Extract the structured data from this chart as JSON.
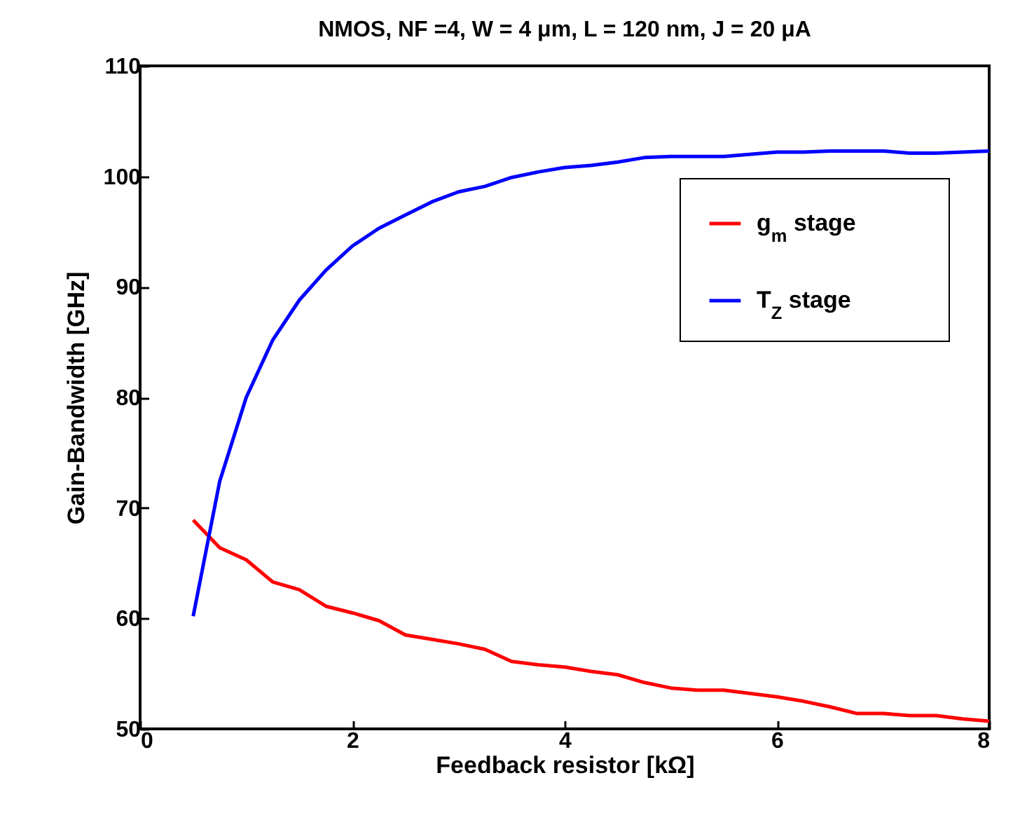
{
  "chart_data": {
    "type": "line",
    "title": "NMOS, NF =4, W = 4 μm, L = 120 nm, J = 20 μA",
    "xlabel": "Feedback resistor [kΩ]",
    "ylabel": "Gain-Bandwidth [GHz]",
    "xlim": [
      0,
      8
    ],
    "xticks": [
      0,
      2,
      4,
      6,
      8
    ],
    "ylim": [
      50,
      110
    ],
    "yticks": [
      50,
      60,
      70,
      80,
      90,
      100,
      110
    ],
    "grid": false,
    "legend": "top right",
    "line_style": "solid",
    "marker": "none",
    "series": [
      {
        "name": "g$_{m}$ stage",
        "color": "#ff0000",
        "x": [
          0.5,
          0.75,
          1,
          1.25,
          1.5,
          1.75,
          2,
          2.25,
          2.5,
          2.75,
          3,
          3.25,
          3.5,
          3.75,
          4,
          4.25,
          4.5,
          4.75,
          5,
          5.25,
          5.5,
          6,
          6.25,
          6.5,
          6.75,
          7,
          7.25,
          7.5,
          7.75,
          8
        ],
        "values": [
          68.9,
          66.4,
          65.3,
          63.3,
          62.6,
          61.1,
          60.5,
          59.8,
          58.5,
          58.1,
          57.7,
          57.2,
          56.1,
          55.8,
          55.6,
          55.2,
          54.9,
          54.2,
          53.7,
          53.5,
          53.5,
          52.9,
          52.5,
          52,
          51.4,
          51.4,
          51.2,
          51.2,
          50.9,
          50.7
        ]
      },
      {
        "name": "T$_{Z}$ stage",
        "color": "#0000ff",
        "x": [
          0.5,
          0.75,
          1,
          1.25,
          1.5,
          1.75,
          2,
          2.25,
          2.5,
          2.75,
          3,
          3.25,
          3.5,
          3.75,
          4,
          4.25,
          4.5,
          4.75,
          5,
          5.5,
          6,
          6.25,
          6.5,
          7,
          7.25,
          7.5,
          8
        ],
        "values": [
          60.2,
          72.4,
          80,
          85.2,
          88.8,
          91.5,
          93.7,
          95.3,
          96.5,
          97.7,
          98.6,
          99.1,
          99.9,
          100.4,
          100.8,
          101,
          101.3,
          101.7,
          101.8,
          101.8,
          102.2,
          102.2,
          102.3,
          102.3,
          102.1,
          102.1,
          102.3
        ]
      }
    ]
  }
}
